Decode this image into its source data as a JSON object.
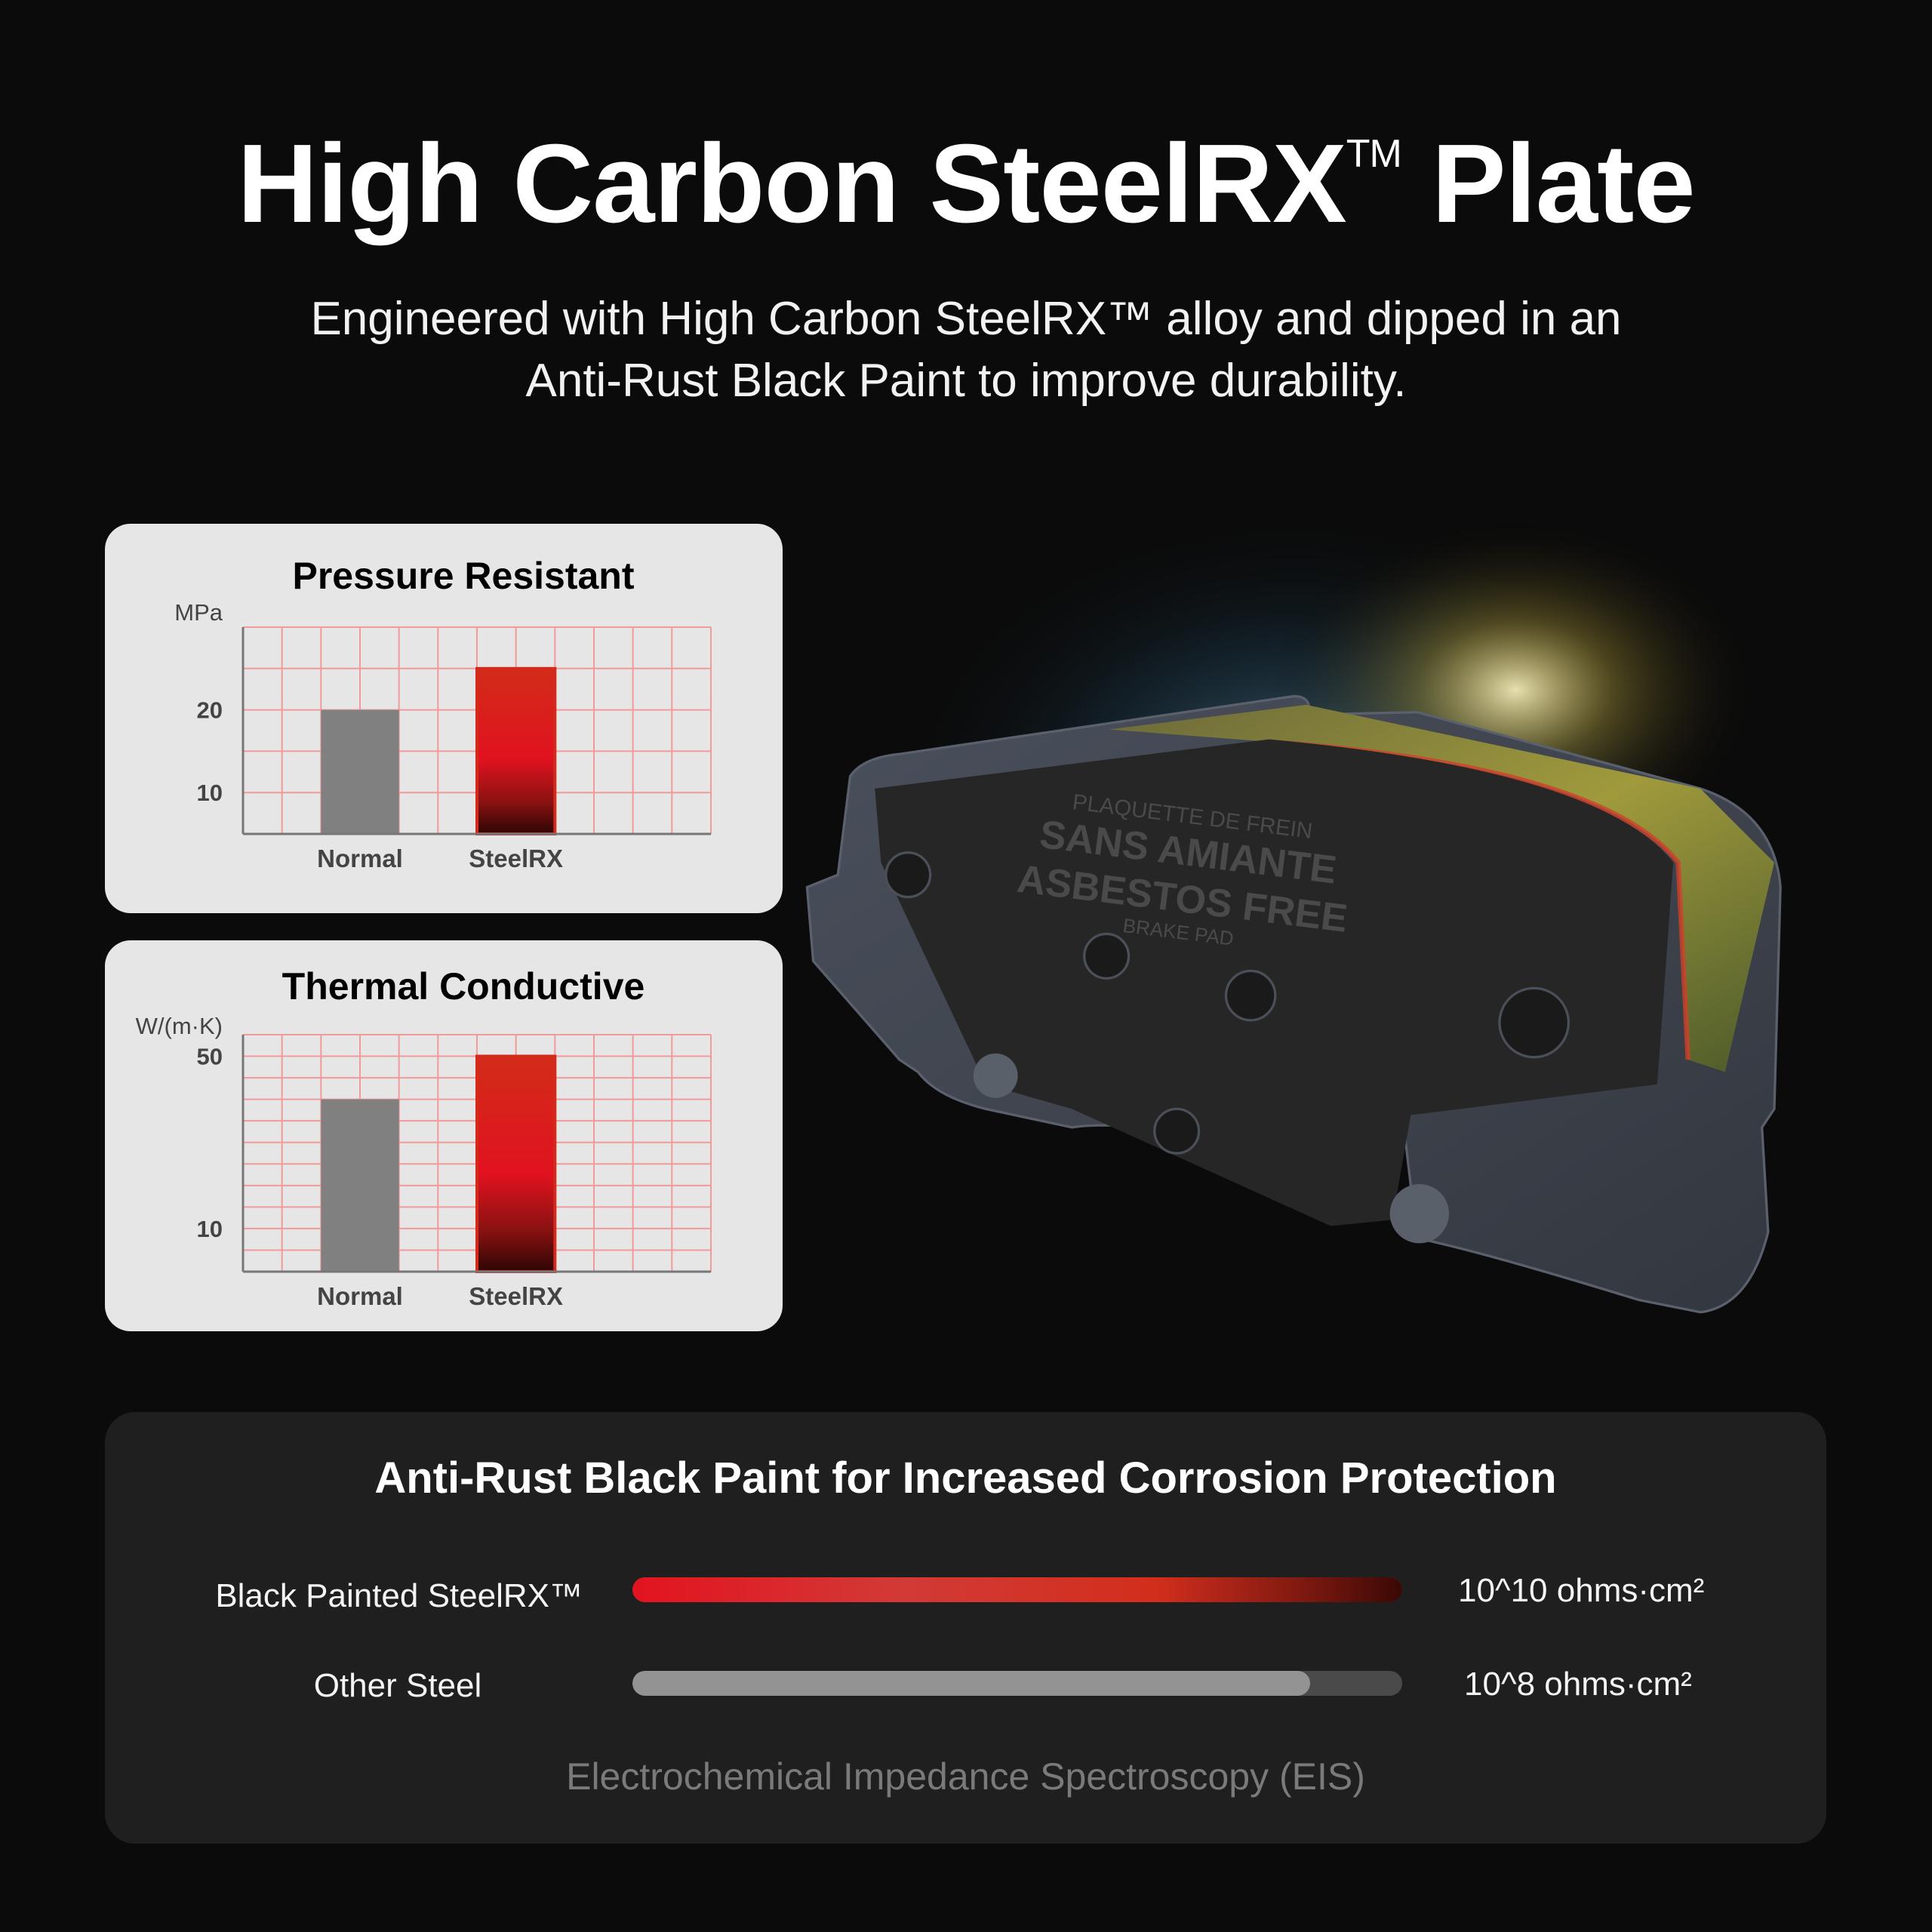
{
  "header": {
    "title": "High Carbon SteelRX",
    "title_mark": "TM",
    "title_end": "Plate",
    "subtitle_line1": "Engineered with High Carbon SteelRX™ alloy and dipped in an",
    "subtitle_line2": "Anti-Rust Black Paint to improve durability."
  },
  "product": {
    "pad_text": [
      "PLAQUETTE DE FREIN",
      "SANS AMIANTE",
      "ASBESTOS FREE",
      "BRAKE PAD"
    ]
  },
  "chart_data": [
    {
      "type": "bar",
      "title": "Pressure Resistant",
      "ylabel": "MPa",
      "categories": [
        "Normal",
        "SteelRX"
      ],
      "values": [
        20,
        25
      ],
      "ylim": [
        5,
        30
      ],
      "yticks": [
        10,
        20
      ],
      "grid": true,
      "colors": [
        "#808080",
        "#d42a1c"
      ]
    },
    {
      "type": "bar",
      "title": "Thermal Conductive",
      "ylabel": "W/(m·K)",
      "categories": [
        "Normal",
        "SteelRX"
      ],
      "values": [
        40,
        50
      ],
      "ylim": [
        0,
        55
      ],
      "yticks": [
        10,
        50
      ],
      "grid": true,
      "colors": [
        "#808080",
        "#d42a1c"
      ]
    }
  ],
  "corrosion": {
    "title": "Anti-Rust Black Paint for Increased Corrosion Protection",
    "rows": [
      {
        "label": "Black Painted SteelRX™",
        "value": "10^10 ohms·cm²",
        "fill": 1.0,
        "color": "#e0161f"
      },
      {
        "label": "Other Steel",
        "value": "10^8 ohms·cm²",
        "fill": 0.88,
        "color": "#939393"
      }
    ],
    "caption": "Electrochemical Impedance Spectroscopy (EIS)"
  },
  "colors": {
    "background": "#0b0b0b",
    "card": "#e6e6e6",
    "panel": "#1f1f1f",
    "accent": "#e0161f",
    "grid": "#f29a9a"
  }
}
